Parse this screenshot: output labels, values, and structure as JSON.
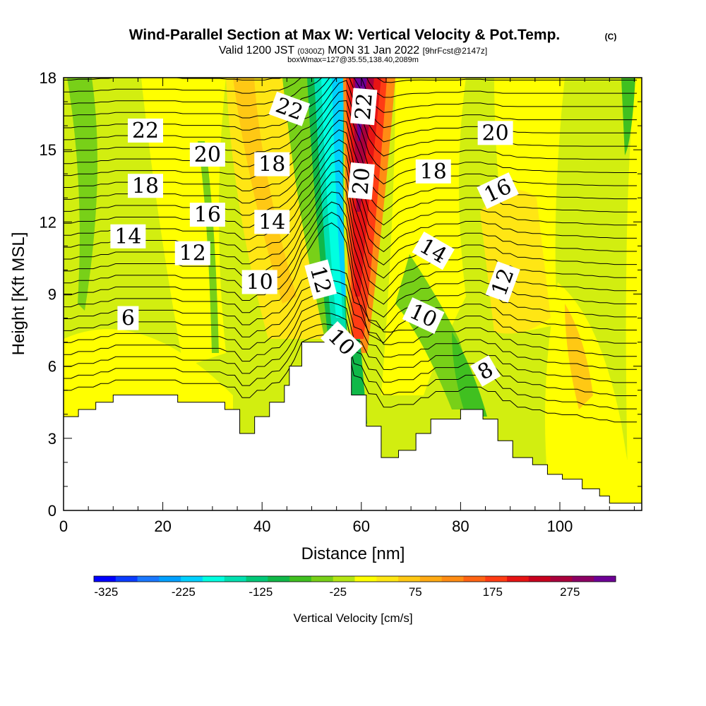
{
  "header": {
    "title": "Wind-Parallel Section at Max W: Vertical Velocity & Pot.Temp.",
    "copyright": "(C)",
    "valid_line_a": "Valid 1200 JST",
    "valid_line_b": "(0300Z)",
    "valid_line_c": "MON 31 Jan 2022",
    "valid_line_d": "[9hrFcst@2147z]",
    "box_line": "boxWmax=127@35.55,138.40,2089m"
  },
  "chart_data": {
    "type": "heatmap",
    "xlabel": "Distance [nm]",
    "ylabel": "Height [Kft MSL]",
    "xlim": [
      0,
      116.5
    ],
    "ylim": [
      0,
      18
    ],
    "x_ticks": [
      "0",
      "20",
      "40",
      "60",
      "80",
      "100"
    ],
    "x_tick_values": [
      0,
      20,
      40,
      60,
      80,
      100
    ],
    "y_ticks": [
      "0",
      "3",
      "6",
      "9",
      "12",
      "15",
      "18"
    ],
    "y_tick_values": [
      0,
      3,
      6,
      9,
      12,
      15,
      18
    ],
    "colorbar": {
      "label": "Vertical Velocity [cm/s]",
      "tick_labels": [
        "-325",
        "-225",
        "-125",
        "-25",
        "75",
        "175",
        "275"
      ],
      "tick_values": [
        -325,
        -225,
        -125,
        -25,
        75,
        175,
        275
      ],
      "colors": [
        "#0000ff",
        "#0b3cff",
        "#1a78ff",
        "#00a0ff",
        "#00d0ff",
        "#00ffe0",
        "#00e0b0",
        "#00c878",
        "#10b848",
        "#40c020",
        "#78d018",
        "#b4e614",
        "#ffff00",
        "#ffe614",
        "#ffc814",
        "#ffaa14",
        "#ff8c14",
        "#ff6414",
        "#ff3c14",
        "#e61414",
        "#c8001e",
        "#aa003c",
        "#8c0064",
        "#6e0096"
      ]
    },
    "terrain": [
      [
        0,
        3.9
      ],
      [
        3,
        4.2
      ],
      [
        6.5,
        4.5
      ],
      [
        10,
        4.8
      ],
      [
        23,
        4.5
      ],
      [
        32.5,
        4.2
      ],
      [
        35.5,
        3.2
      ],
      [
        38.5,
        3.9
      ],
      [
        41.5,
        4.5
      ],
      [
        44.5,
        5.2
      ],
      [
        45.5,
        6.0
      ],
      [
        48,
        7.0
      ],
      [
        55.5,
        7.0
      ],
      [
        58,
        4.8
      ],
      [
        61,
        3.5
      ],
      [
        64,
        2.2
      ],
      [
        67.5,
        2.5
      ],
      [
        71,
        3.2
      ],
      [
        74,
        3.8
      ],
      [
        80,
        4.2
      ],
      [
        84.5,
        3.8
      ],
      [
        87.5,
        2.9
      ],
      [
        90.5,
        2.2
      ],
      [
        94.5,
        1.9
      ],
      [
        97.5,
        1.5
      ],
      [
        100.5,
        1.3
      ],
      [
        104.5,
        0.9
      ],
      [
        108,
        0.6
      ],
      [
        110,
        0.3
      ],
      [
        116.5,
        0.3
      ]
    ],
    "theta_contour_labels": [
      {
        "text": "22",
        "x": 16.5,
        "y": 15.8,
        "rot": 0
      },
      {
        "text": "20",
        "x": 29,
        "y": 14.8,
        "rot": 0
      },
      {
        "text": "18",
        "x": 16.5,
        "y": 13.5,
        "rot": 0
      },
      {
        "text": "16",
        "x": 29,
        "y": 12.3,
        "rot": 0
      },
      {
        "text": "14",
        "x": 13,
        "y": 11.4,
        "rot": 0
      },
      {
        "text": "12",
        "x": 26,
        "y": 10.7,
        "rot": 0
      },
      {
        "text": "10",
        "x": 39.5,
        "y": 9.5,
        "rot": 0
      },
      {
        "text": "6",
        "x": 13,
        "y": 8.0,
        "rot": 0
      },
      {
        "text": "22",
        "x": 45.5,
        "y": 16.7,
        "rot": 20
      },
      {
        "text": "18",
        "x": 42,
        "y": 14.4,
        "rot": 0
      },
      {
        "text": "14",
        "x": 42,
        "y": 12.0,
        "rot": 0
      },
      {
        "text": "12",
        "x": 51.8,
        "y": 9.6,
        "rot": 75
      },
      {
        "text": "10",
        "x": 56,
        "y": 7.0,
        "rot": 45
      },
      {
        "text": "22",
        "x": 60.5,
        "y": 16.8,
        "rot": -85
      },
      {
        "text": "20",
        "x": 60,
        "y": 13.7,
        "rot": -85
      },
      {
        "text": "18",
        "x": 74.5,
        "y": 14.1,
        "rot": 0
      },
      {
        "text": "14",
        "x": 74.5,
        "y": 10.8,
        "rot": 30
      },
      {
        "text": "10",
        "x": 72.5,
        "y": 8.1,
        "rot": 25
      },
      {
        "text": "20",
        "x": 87,
        "y": 15.7,
        "rot": 0
      },
      {
        "text": "16",
        "x": 87.5,
        "y": 13.3,
        "rot": -25
      },
      {
        "text": "12",
        "x": 88.5,
        "y": 9.5,
        "rot": -70
      },
      {
        "text": "8",
        "x": 85,
        "y": 5.8,
        "rot": -30
      }
    ]
  }
}
